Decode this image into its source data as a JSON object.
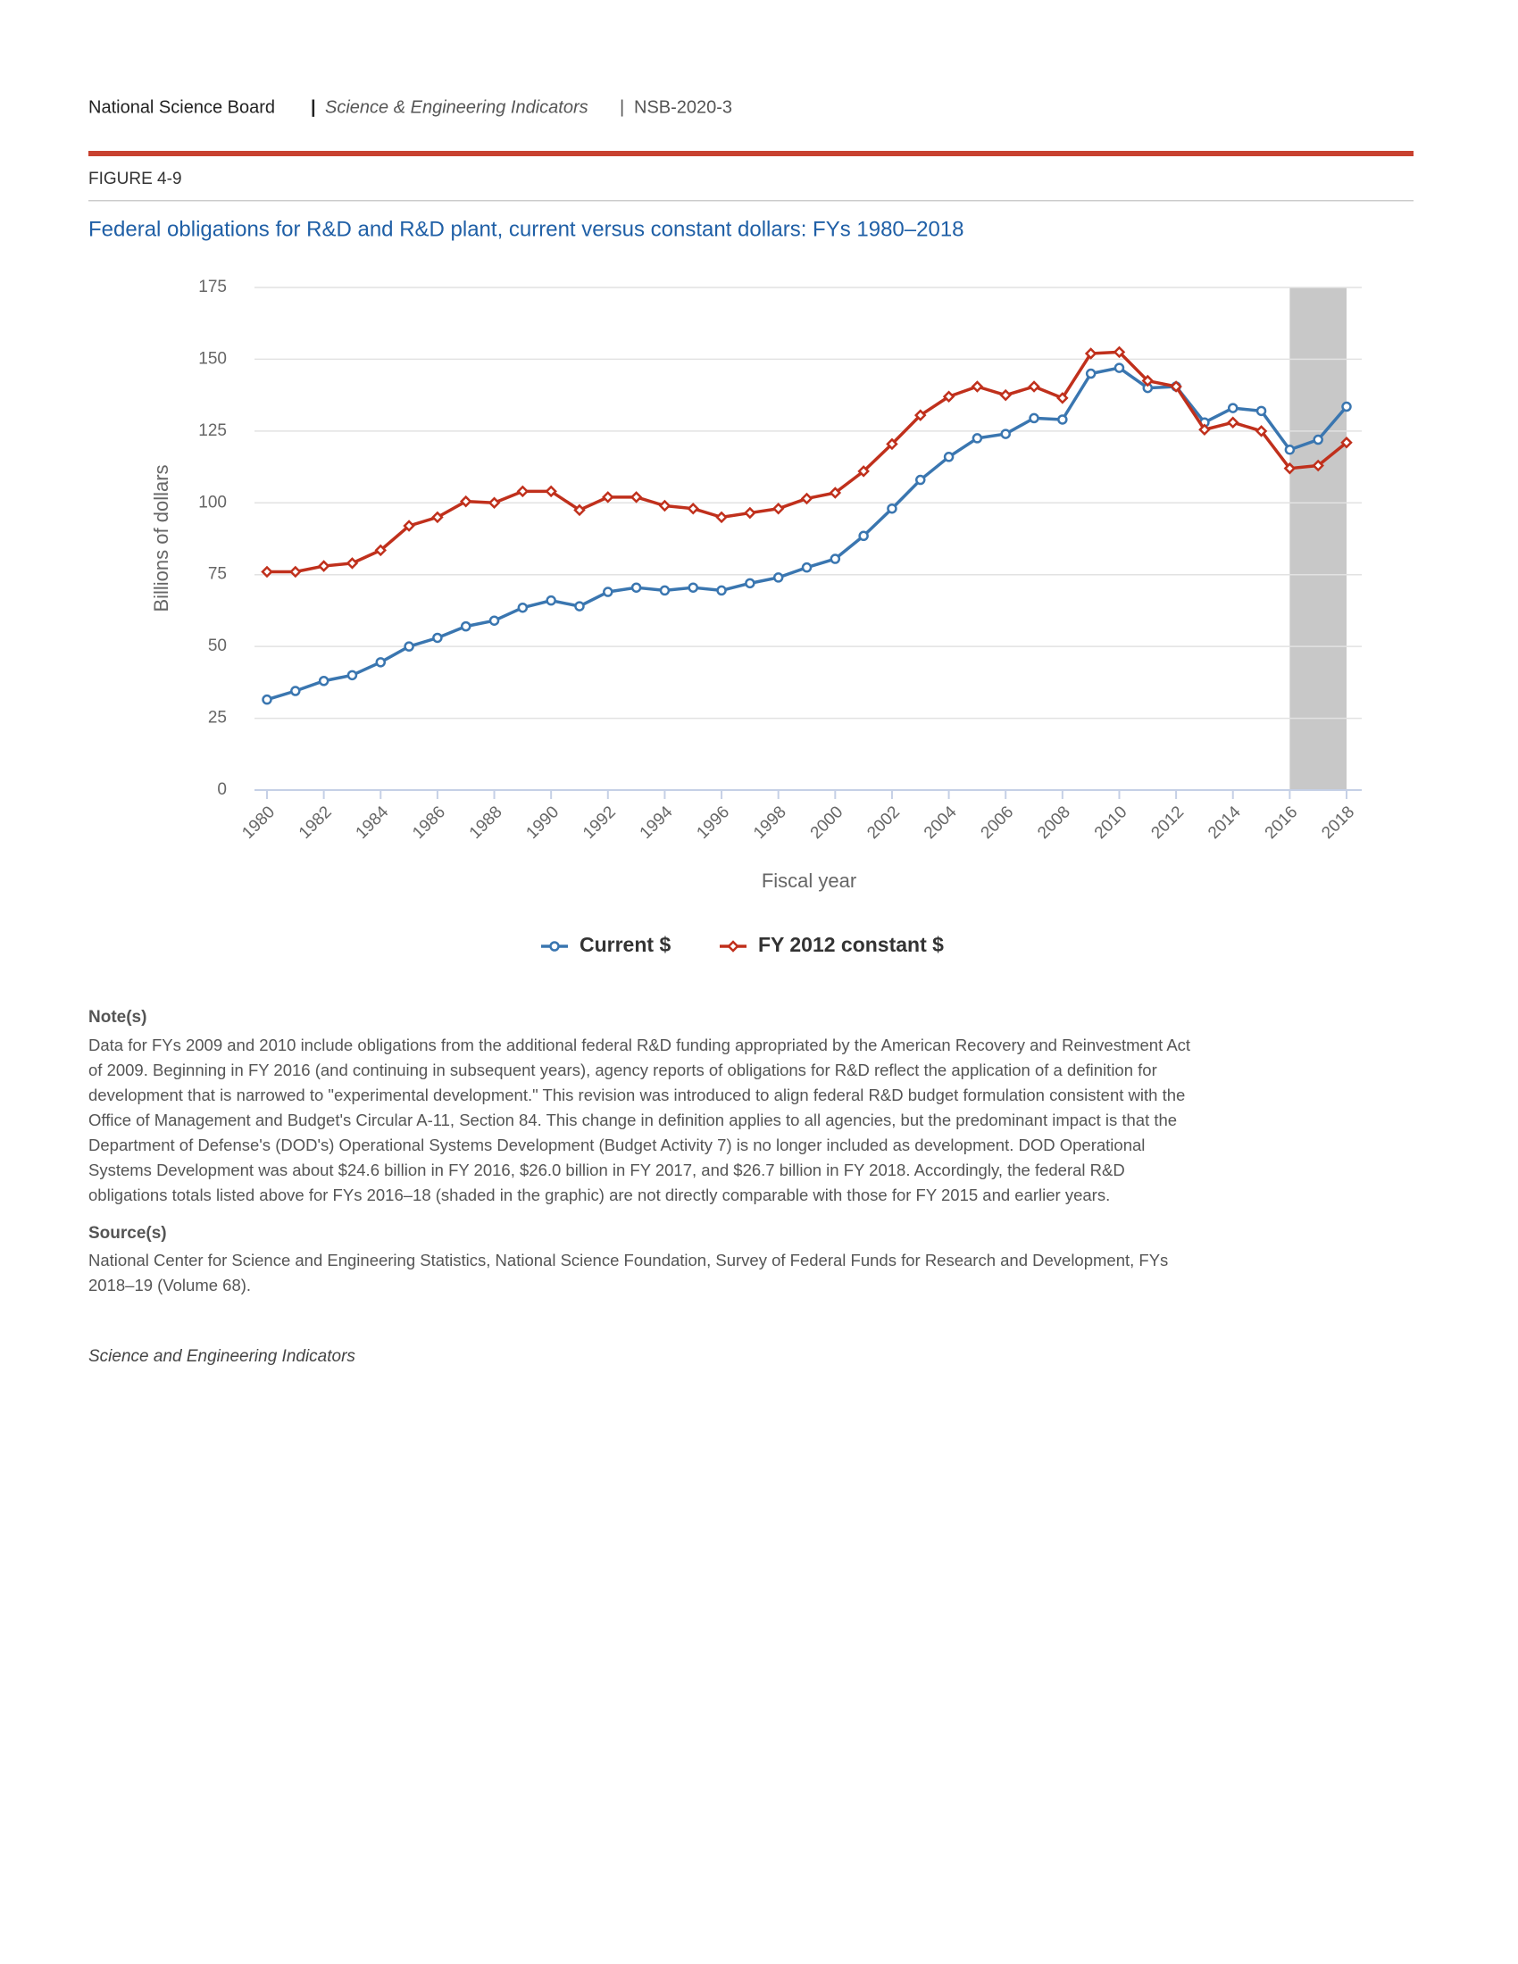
{
  "header": {
    "org": "National Science Board",
    "separator": "|",
    "publication": "Science & Engineering Indicators",
    "report": "NSB-2020-3"
  },
  "figure_label": "FIGURE 4-9",
  "chart_data": {
    "type": "line",
    "title": "Federal obligations for R&D and R&D plant, current versus constant dollars: FYs 1980–2018",
    "x_label": "Fiscal year",
    "y_label": "Billions of dollars",
    "x": [
      1980,
      1981,
      1982,
      1983,
      1984,
      1985,
      1986,
      1987,
      1988,
      1989,
      1990,
      1991,
      1992,
      1993,
      1994,
      1995,
      1996,
      1997,
      1998,
      1999,
      2000,
      2001,
      2002,
      2003,
      2004,
      2005,
      2006,
      2007,
      2008,
      2009,
      2010,
      2011,
      2012,
      2013,
      2014,
      2015,
      2016,
      2017,
      2018
    ],
    "series": [
      {
        "name": "Current $",
        "color": "#3a76b0",
        "marker": "circle",
        "values": [
          31.5,
          34.5,
          38,
          40,
          44.5,
          50,
          53,
          57,
          59,
          63.5,
          66,
          64,
          69,
          70.5,
          69.5,
          70.5,
          69.5,
          72,
          74,
          77.5,
          80.5,
          88.5,
          98,
          108,
          116,
          122.5,
          124,
          129.5,
          129,
          145,
          147,
          140,
          140.5,
          128,
          133,
          132,
          118.5,
          122,
          133.5
        ]
      },
      {
        "name": "FY 2012 constant $",
        "color": "#c0301c",
        "marker": "diamond",
        "values": [
          76,
          76,
          78,
          79,
          83.5,
          92,
          95,
          100.5,
          100,
          104,
          104,
          97.5,
          102,
          102,
          99,
          98,
          95,
          96.5,
          98,
          101.5,
          103.5,
          111,
          120.5,
          130.5,
          137,
          140.5,
          137.5,
          140.5,
          136.5,
          152,
          152.5,
          142.5,
          140.5,
          125.5,
          128,
          125,
          112,
          113,
          121
        ]
      }
    ],
    "xlim": [
      1980,
      2018
    ],
    "xticks": [
      1980,
      1982,
      1984,
      1986,
      1988,
      1990,
      1992,
      1994,
      1996,
      1998,
      2000,
      2002,
      2004,
      2006,
      2008,
      2010,
      2012,
      2014,
      2016,
      2018
    ],
    "ylim": [
      0,
      175
    ],
    "yticks": [
      0,
      25,
      50,
      75,
      100,
      125,
      150,
      175
    ],
    "grid": true,
    "shaded_range": [
      2016,
      2018
    ],
    "shade_color": "#c8c8c8",
    "legend": "bottom"
  },
  "notes": {
    "heading": "Note(s)",
    "lines": [
      "Data for FYs 2009 and 2010 include obligations from the additional federal R&D funding appropriated by the American Recovery and Reinvestment Act",
      "of 2009. Beginning in FY 2016 (and continuing in subsequent years), agency reports of obligations for R&D reflect the application of a definition for",
      "development that is narrowed to \"experimental development.\" This revision was introduced to align federal R&D budget formulation consistent with the",
      "Office of Management and Budget's Circular A-11, Section 84. This change in definition applies to all agencies, but the predominant impact is that the",
      "Department of Defense's (DOD's) Operational Systems Development (Budget Activity 7) is no longer included as development. DOD Operational",
      "Systems Development was about $24.6 billion in FY 2016, $26.0 billion in FY 2017, and $26.7 billion in FY 2018. Accordingly, the federal R&D",
      "obligations totals listed above for FYs 2016–18 (shaded in the graphic) are not directly comparable with those for FY 2015 and earlier years."
    ]
  },
  "sources": {
    "heading": "Source(s)",
    "lines": [
      "National Center for Science and Engineering Statistics, National Science Foundation, Survey of Federal Funds for Research and Development, FYs",
      "2018–19 (Volume 68)."
    ]
  },
  "footer": "Science and Engineering Indicators"
}
